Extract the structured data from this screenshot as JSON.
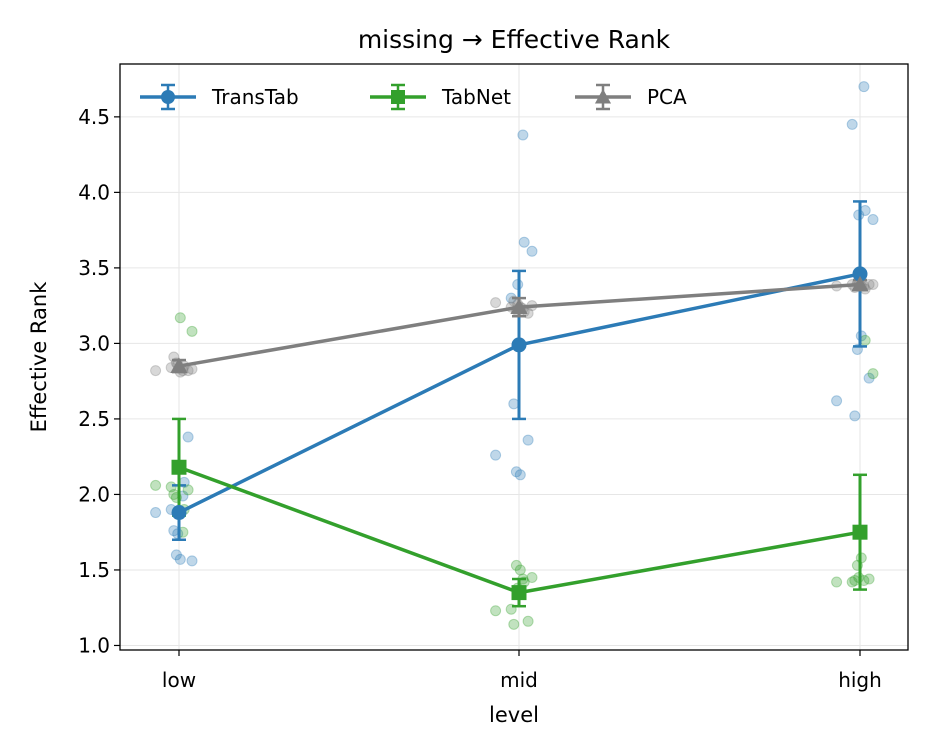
{
  "chart_data": {
    "type": "line",
    "title": "missing → Effective Rank",
    "xlabel": "level",
    "ylabel": "Effective Rank",
    "categories": [
      "low",
      "mid",
      "high"
    ],
    "ylim": [
      0.97,
      4.85
    ],
    "yticks": [
      1.0,
      1.5,
      2.0,
      2.5,
      3.0,
      3.5,
      4.0,
      4.5
    ],
    "ytick_labels": [
      "1.0",
      "1.5",
      "2.0",
      "2.5",
      "3.0",
      "3.5",
      "4.0",
      "4.5"
    ],
    "grid": true,
    "legend_position": "top-left",
    "series": [
      {
        "name": "TransTab",
        "color": "#2c7bb6",
        "marker": "circle",
        "means": [
          1.88,
          2.99,
          3.46
        ],
        "errors": [
          0.18,
          0.49,
          0.48
        ],
        "points": [
          [
            1.88,
            2.38,
            1.76,
            1.6,
            1.57,
            1.56,
            2.08,
            1.74,
            1.99,
            1.9
          ],
          [
            2.26,
            2.36,
            2.6,
            2.15,
            2.13,
            3.61,
            3.67,
            3.39,
            4.38,
            3.3
          ],
          [
            2.62,
            2.77,
            2.52,
            2.96,
            3.05,
            3.82,
            3.88,
            3.85,
            4.7,
            4.45
          ]
        ]
      },
      {
        "name": "TabNet",
        "color": "#33a02c",
        "marker": "square",
        "means": [
          2.18,
          1.35,
          1.75
        ],
        "errors": [
          0.32,
          0.09,
          0.38
        ],
        "points": [
          [
            2.06,
            2.03,
            2.0,
            1.98,
            3.17,
            3.08,
            1.9,
            2.18,
            1.75,
            2.05
          ],
          [
            1.23,
            1.16,
            1.14,
            1.53,
            1.5,
            1.45,
            1.42,
            1.38,
            1.44,
            1.24
          ],
          [
            1.42,
            1.44,
            1.43,
            1.53,
            1.58,
            2.8,
            3.02,
            1.45,
            1.43,
            1.42
          ]
        ]
      },
      {
        "name": "PCA",
        "color": "#7f7f7f",
        "marker": "triangle",
        "means": [
          2.85,
          3.24,
          3.39
        ],
        "errors": [
          0.04,
          0.06,
          0.03
        ],
        "points": [
          [
            2.82,
            2.82,
            2.91,
            2.87,
            2.81,
            2.83,
            2.85,
            2.86,
            2.82,
            2.84
          ],
          [
            3.27,
            3.2,
            3.28,
            3.22,
            3.24,
            3.25,
            3.21,
            3.26,
            3.23,
            3.24
          ],
          [
            3.38,
            3.39,
            3.37,
            3.4,
            3.38,
            3.39,
            3.36,
            3.41,
            3.38,
            3.39
          ]
        ]
      }
    ]
  }
}
